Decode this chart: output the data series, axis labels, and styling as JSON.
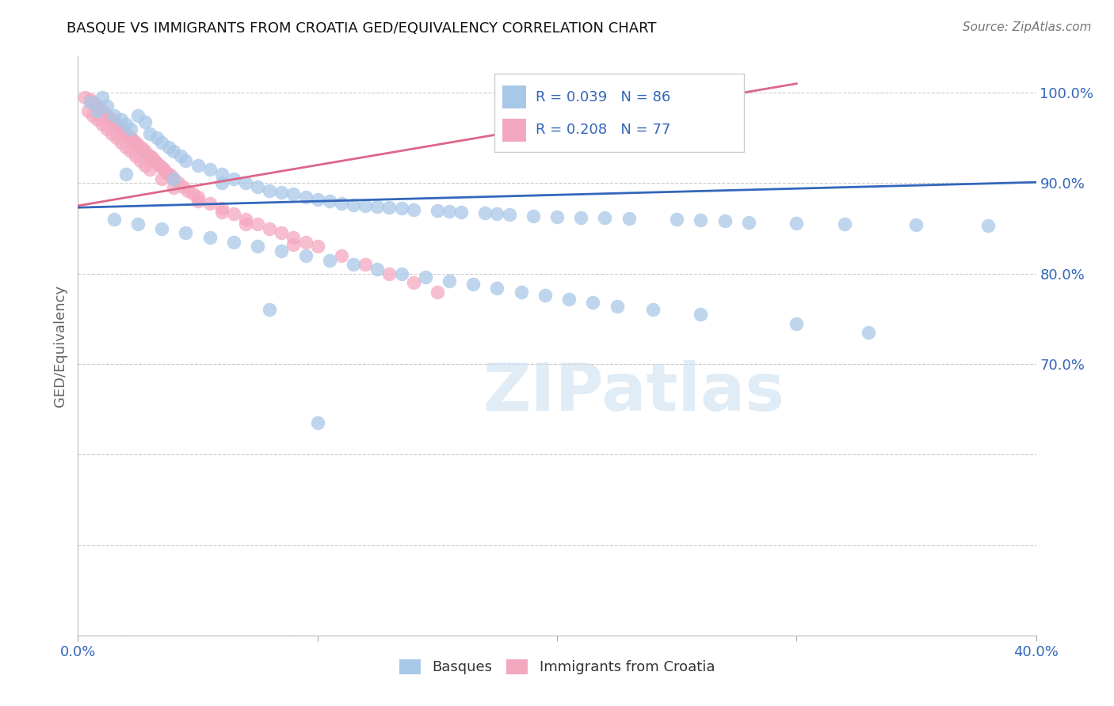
{
  "title": "BASQUE VS IMMIGRANTS FROM CROATIA GED/EQUIVALENCY CORRELATION CHART",
  "source": "Source: ZipAtlas.com",
  "ylabel_label": "GED/Equivalency",
  "watermark": "ZIPatlas",
  "legend_blue_r": "R = 0.039",
  "legend_blue_n": "N = 86",
  "legend_pink_r": "R = 0.208",
  "legend_pink_n": "N = 77",
  "legend_blue_label": "Basques",
  "legend_pink_label": "Immigrants from Croatia",
  "x_min": 0.0,
  "x_max": 0.4,
  "y_min": 0.4,
  "y_max": 1.04,
  "blue_color": "#a8c8e8",
  "pink_color": "#f4a8c0",
  "blue_line_color": "#3366bb",
  "pink_line_color": "#dd6688",
  "background_color": "#ffffff",
  "grid_color": "#cccccc",
  "blue_scatter_x": [
    0.005,
    0.008,
    0.01,
    0.012,
    0.015,
    0.018,
    0.02,
    0.022,
    0.025,
    0.028,
    0.03,
    0.033,
    0.035,
    0.038,
    0.04,
    0.043,
    0.045,
    0.05,
    0.055,
    0.06,
    0.065,
    0.07,
    0.075,
    0.08,
    0.085,
    0.09,
    0.095,
    0.1,
    0.105,
    0.11,
    0.115,
    0.12,
    0.125,
    0.13,
    0.135,
    0.14,
    0.15,
    0.155,
    0.16,
    0.17,
    0.175,
    0.18,
    0.19,
    0.2,
    0.21,
    0.22,
    0.23,
    0.25,
    0.26,
    0.27,
    0.28,
    0.3,
    0.32,
    0.35,
    0.38,
    0.015,
    0.025,
    0.035,
    0.045,
    0.055,
    0.065,
    0.075,
    0.085,
    0.095,
    0.105,
    0.115,
    0.125,
    0.135,
    0.145,
    0.155,
    0.165,
    0.175,
    0.185,
    0.195,
    0.205,
    0.215,
    0.225,
    0.24,
    0.26,
    0.3,
    0.33,
    0.02,
    0.04,
    0.06,
    0.08,
    0.1
  ],
  "blue_scatter_y": [
    0.99,
    0.98,
    0.995,
    0.985,
    0.975,
    0.97,
    0.965,
    0.96,
    0.975,
    0.968,
    0.955,
    0.95,
    0.945,
    0.94,
    0.935,
    0.93,
    0.925,
    0.92,
    0.915,
    0.91,
    0.905,
    0.9,
    0.896,
    0.892,
    0.89,
    0.888,
    0.885,
    0.882,
    0.88,
    0.878,
    0.876,
    0.875,
    0.874,
    0.873,
    0.872,
    0.871,
    0.87,
    0.869,
    0.868,
    0.867,
    0.866,
    0.865,
    0.864,
    0.863,
    0.862,
    0.862,
    0.861,
    0.86,
    0.859,
    0.858,
    0.857,
    0.856,
    0.855,
    0.854,
    0.853,
    0.86,
    0.855,
    0.85,
    0.845,
    0.84,
    0.835,
    0.83,
    0.825,
    0.82,
    0.815,
    0.81,
    0.805,
    0.8,
    0.796,
    0.792,
    0.788,
    0.784,
    0.78,
    0.776,
    0.772,
    0.768,
    0.764,
    0.76,
    0.755,
    0.745,
    0.735,
    0.91,
    0.905,
    0.9,
    0.76,
    0.635
  ],
  "pink_scatter_x": [
    0.003,
    0.005,
    0.006,
    0.007,
    0.008,
    0.009,
    0.01,
    0.011,
    0.012,
    0.013,
    0.014,
    0.015,
    0.016,
    0.017,
    0.018,
    0.019,
    0.02,
    0.021,
    0.022,
    0.023,
    0.024,
    0.025,
    0.026,
    0.027,
    0.028,
    0.029,
    0.03,
    0.031,
    0.032,
    0.033,
    0.034,
    0.035,
    0.036,
    0.037,
    0.038,
    0.039,
    0.04,
    0.042,
    0.044,
    0.046,
    0.048,
    0.05,
    0.055,
    0.06,
    0.065,
    0.07,
    0.075,
    0.08,
    0.085,
    0.09,
    0.095,
    0.1,
    0.11,
    0.12,
    0.13,
    0.14,
    0.15,
    0.004,
    0.006,
    0.008,
    0.01,
    0.012,
    0.014,
    0.016,
    0.018,
    0.02,
    0.022,
    0.024,
    0.026,
    0.028,
    0.03,
    0.035,
    0.04,
    0.05,
    0.06,
    0.07,
    0.09
  ],
  "pink_scatter_y": [
    0.995,
    0.992,
    0.99,
    0.988,
    0.985,
    0.982,
    0.98,
    0.978,
    0.975,
    0.972,
    0.97,
    0.968,
    0.965,
    0.962,
    0.96,
    0.958,
    0.955,
    0.952,
    0.95,
    0.948,
    0.945,
    0.942,
    0.94,
    0.938,
    0.935,
    0.932,
    0.93,
    0.928,
    0.925,
    0.922,
    0.92,
    0.918,
    0.915,
    0.912,
    0.91,
    0.908,
    0.905,
    0.9,
    0.896,
    0.892,
    0.888,
    0.885,
    0.878,
    0.872,
    0.866,
    0.86,
    0.855,
    0.85,
    0.845,
    0.84,
    0.835,
    0.83,
    0.82,
    0.81,
    0.8,
    0.79,
    0.78,
    0.98,
    0.975,
    0.97,
    0.965,
    0.96,
    0.955,
    0.95,
    0.945,
    0.94,
    0.935,
    0.93,
    0.925,
    0.92,
    0.915,
    0.905,
    0.895,
    0.88,
    0.868,
    0.855,
    0.832
  ],
  "blue_trend_x": [
    0.0,
    0.4
  ],
  "blue_trend_y": [
    0.873,
    0.901
  ],
  "pink_trend_x": [
    0.0,
    0.3
  ],
  "pink_trend_y": [
    0.875,
    1.01
  ]
}
